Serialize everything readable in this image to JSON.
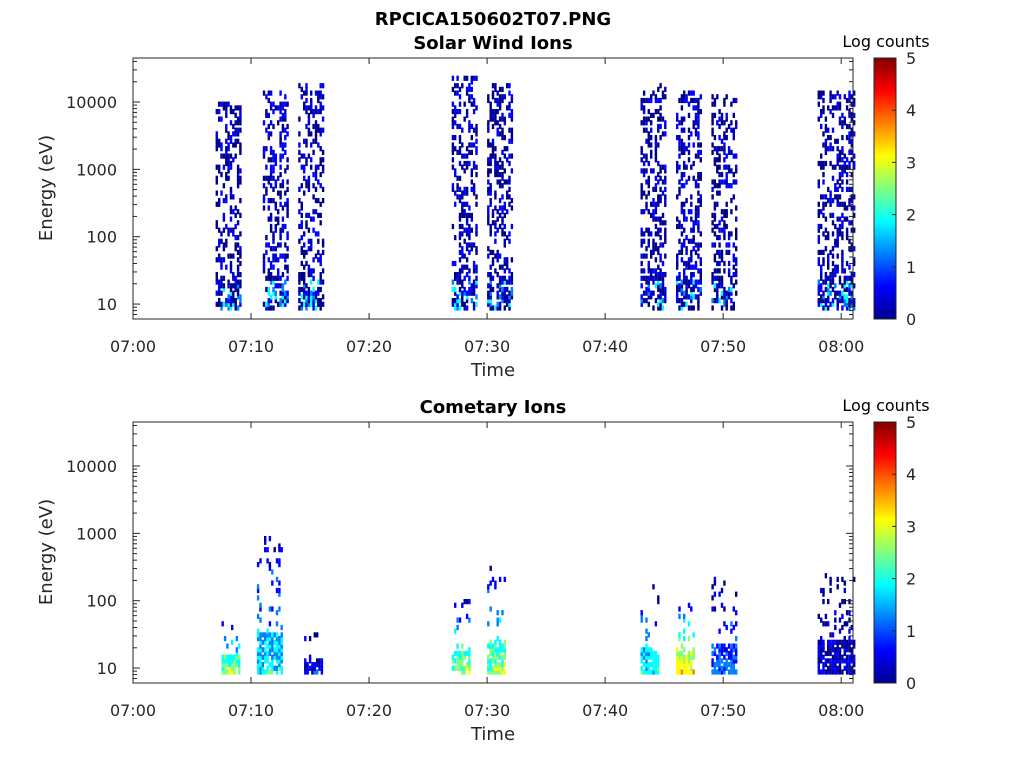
{
  "figure": {
    "title": "RPCICA150602T07.PNG"
  },
  "colormap": [
    "#00008f",
    "#0000ff",
    "#0080ff",
    "#00ffff",
    "#80ff80",
    "#ffff00",
    "#ff8000",
    "#ff0000",
    "#800000"
  ],
  "chart_data": [
    {
      "type": "heatmap",
      "title": "Solar Wind Ions",
      "xlabel": "Time",
      "ylabel": "Energy (eV)",
      "y_scale": "log",
      "xlim": [
        "07:00",
        "08:01"
      ],
      "ylim": [
        6,
        45000
      ],
      "x_ticks": [
        "07:00",
        "07:10",
        "07:20",
        "07:30",
        "07:40",
        "07:50",
        "08:00"
      ],
      "y_ticks": [
        "10",
        "100",
        "1000",
        "10000"
      ],
      "colorbar": {
        "label": "Log counts",
        "range": [
          0,
          5
        ],
        "ticks": [
          "0",
          "1",
          "2",
          "3",
          "4",
          "5"
        ]
      },
      "bursts": [
        {
          "start": "07:07",
          "end": "07:09",
          "emin": 8,
          "emax": 9000,
          "level": 0.4
        },
        {
          "start": "07:11",
          "end": "07:13",
          "emin": 8,
          "emax": 14000,
          "level": 0.5
        },
        {
          "start": "07:14",
          "end": "07:16",
          "emin": 8,
          "emax": 16000,
          "level": 0.4
        },
        {
          "start": "07:27",
          "end": "07:29",
          "emin": 8,
          "emax": 22000,
          "level": 0.5
        },
        {
          "start": "07:30",
          "end": "07:32",
          "emin": 8,
          "emax": 16000,
          "level": 0.4
        },
        {
          "start": "07:43",
          "end": "07:45",
          "emin": 8,
          "emax": 18000,
          "level": 0.4
        },
        {
          "start": "07:46",
          "end": "07:48",
          "emin": 8,
          "emax": 13000,
          "level": 0.5
        },
        {
          "start": "07:49",
          "end": "07:51",
          "emin": 8,
          "emax": 12000,
          "level": 0.4
        },
        {
          "start": "07:58",
          "end": "08:01",
          "emin": 8,
          "emax": 14000,
          "level": 0.4
        }
      ]
    },
    {
      "type": "heatmap",
      "title": "Cometary Ions",
      "xlabel": "Time",
      "ylabel": "Energy (eV)",
      "y_scale": "log",
      "xlim": [
        "07:00",
        "08:01"
      ],
      "ylim": [
        6,
        45000
      ],
      "x_ticks": [
        "07:00",
        "07:10",
        "07:20",
        "07:30",
        "07:40",
        "07:50",
        "08:00"
      ],
      "y_ticks": [
        "10",
        "100",
        "1000",
        "10000"
      ],
      "colorbar": {
        "label": "Log counts",
        "range": [
          0,
          5
        ],
        "ticks": [
          "0",
          "1",
          "2",
          "3",
          "4",
          "5"
        ]
      },
      "bursts": [
        {
          "start": "07:07.5",
          "end": "07:09",
          "emin": 8,
          "emax": 60,
          "level": 2.0
        },
        {
          "start": "07:10.5",
          "end": "07:12.5",
          "emin": 8,
          "emax": 800,
          "level": 1.5
        },
        {
          "start": "07:14.5",
          "end": "07:16",
          "emin": 8,
          "emax": 40,
          "level": 0.6
        },
        {
          "start": "07:27",
          "end": "07:28.5",
          "emin": 8,
          "emax": 100,
          "level": 2.0
        },
        {
          "start": "07:30",
          "end": "07:31.5",
          "emin": 8,
          "emax": 300,
          "level": 2.0
        },
        {
          "start": "07:43",
          "end": "07:44.5",
          "emin": 8,
          "emax": 150,
          "level": 1.5
        },
        {
          "start": "07:46",
          "end": "07:47.5",
          "emin": 8,
          "emax": 100,
          "level": 2.5
        },
        {
          "start": "07:49",
          "end": "07:51",
          "emin": 8,
          "emax": 200,
          "level": 1.0
        },
        {
          "start": "07:58",
          "end": "08:01",
          "emin": 8,
          "emax": 250,
          "level": 0.5
        }
      ]
    }
  ]
}
